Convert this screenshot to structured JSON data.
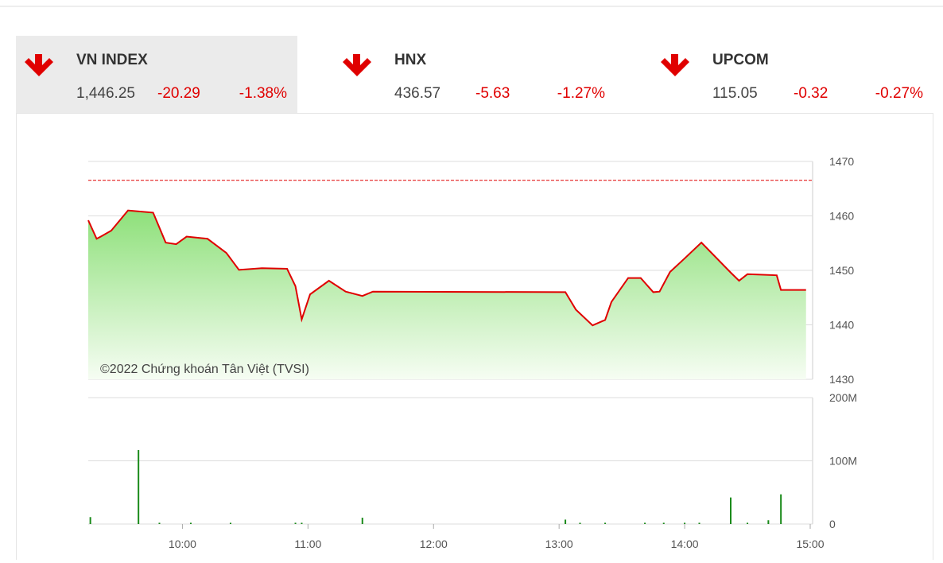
{
  "indices": [
    {
      "name": "VN INDEX",
      "value": "1,446.25",
      "change": "-20.29",
      "percent": "-1.38%"
    },
    {
      "name": "HNX",
      "value": "436.57",
      "change": "-5.63",
      "percent": "-1.27%"
    },
    {
      "name": "UPCOM",
      "value": "115.05",
      "change": "-0.32",
      "percent": "-0.27%"
    }
  ],
  "chart_data": [
    {
      "type": "line",
      "annotation": "©2022 Chứng khoán Tân Việt (TVSI)",
      "color": "#e00000",
      "area": true,
      "reference_line": 1466.54,
      "x": [
        555,
        559,
        561,
        566,
        574,
        586,
        592,
        597,
        602,
        612,
        621,
        627,
        638,
        650,
        654,
        657,
        661,
        670,
        678,
        686,
        691,
        783,
        788,
        796,
        802,
        805,
        813,
        819,
        825,
        828,
        833,
        840,
        848,
        862,
        866,
        870,
        884,
        886,
        898
      ],
      "values": [
        1459.2,
        1455.8,
        1456.2,
        1457.3,
        1461.0,
        1460.6,
        1455.1,
        1454.8,
        1456.2,
        1455.8,
        1453.2,
        1450.1,
        1450.4,
        1450.3,
        1447.1,
        1441.0,
        1445.6,
        1448.1,
        1446.1,
        1445.3,
        1446.1,
        1446.0,
        1442.8,
        1439.9,
        1440.9,
        1444.2,
        1448.6,
        1448.6,
        1446.0,
        1446.1,
        1449.7,
        1452.2,
        1455.1,
        1449.6,
        1448.1,
        1449.3,
        1449.1,
        1446.4,
        1446.4
      ],
      "xlim": [
        555,
        900
      ],
      "ylim": [
        1430,
        1470
      ],
      "yticks": [
        1430,
        1440,
        1450,
        1460,
        1470
      ],
      "grid": true
    },
    {
      "type": "bar",
      "color": "#1a8a1a",
      "x": [
        556,
        579,
        589,
        604,
        623,
        654,
        657,
        686,
        783,
        790,
        802,
        821,
        830,
        840,
        847,
        862,
        870,
        880,
        886
      ],
      "values": [
        11000000,
        117000000,
        2000000,
        2000000,
        2000000,
        2000000,
        2000000,
        10000000,
        7000000,
        2000000,
        2000000,
        2000000,
        2000000,
        2000000,
        2000000,
        42000000,
        2000000,
        6000000,
        47000000
      ],
      "xlim": [
        555,
        900
      ],
      "ylim": [
        0,
        200000000
      ],
      "yticks": [
        0,
        {
          "value": 100000000,
          "label": "100M"
        },
        {
          "value": 200000000,
          "label": "200M"
        }
      ],
      "xticks": [
        {
          "value": 600,
          "label": "10:00"
        },
        {
          "value": 660,
          "label": "11:00"
        },
        {
          "value": 720,
          "label": "12:00"
        },
        {
          "value": 780,
          "label": "13:00"
        },
        {
          "value": 840,
          "label": "14:00"
        },
        {
          "value": 900,
          "label": "15:00"
        }
      ],
      "grid": true
    }
  ]
}
